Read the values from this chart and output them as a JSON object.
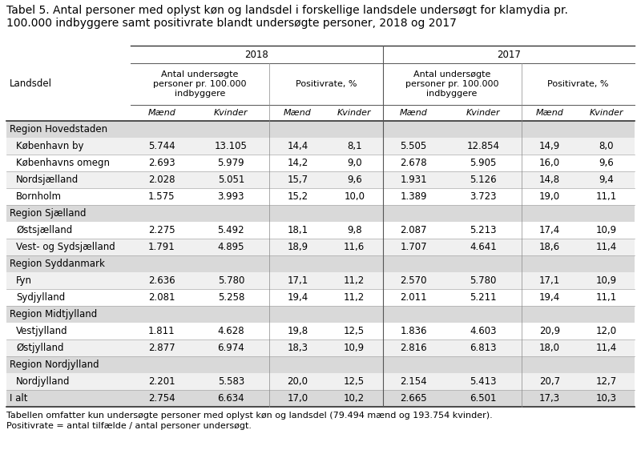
{
  "title": "Tabel 5. Antal personer med oplyst køn og landsdel i forskellige landsdele undersøgt for klamydia pr.\n100.000 indbyggere samt positivrate blandt undersøgte personer, 2018 og 2017",
  "footer1": "Tabellen omfatter kun undersøgte personer med oplyst køn og landsdel (79.494 mænd og 193.754 kvinder).",
  "footer2": "Positivrate = antal tilfælde / antal personer undersøgt.",
  "col_headers": [
    "Mænd",
    "Kvinder",
    "Mænd",
    "Kvinder",
    "Mænd",
    "Kvinder",
    "Mænd",
    "Kvinder"
  ],
  "row_header": "Landsdel",
  "rows": [
    {
      "label": "Region Hovedstaden",
      "is_region": true,
      "values": [
        "",
        "",
        "",
        "",
        "",
        "",
        "",
        ""
      ]
    },
    {
      "label": "København by",
      "is_region": false,
      "values": [
        "5.744",
        "13.105",
        "14,4",
        "8,1",
        "5.505",
        "12.854",
        "14,9",
        "8,0"
      ]
    },
    {
      "label": "Københavns omegn",
      "is_region": false,
      "values": [
        "2.693",
        "5.979",
        "14,2",
        "9,0",
        "2.678",
        "5.905",
        "16,0",
        "9,6"
      ]
    },
    {
      "label": "Nordsjælland",
      "is_region": false,
      "values": [
        "2.028",
        "5.051",
        "15,7",
        "9,6",
        "1.931",
        "5.126",
        "14,8",
        "9,4"
      ]
    },
    {
      "label": "Bornholm",
      "is_region": false,
      "values": [
        "1.575",
        "3.993",
        "15,2",
        "10,0",
        "1.389",
        "3.723",
        "19,0",
        "11,1"
      ]
    },
    {
      "label": "Region Sjælland",
      "is_region": true,
      "values": [
        "",
        "",
        "",
        "",
        "",
        "",
        "",
        ""
      ]
    },
    {
      "label": "Østsjælland",
      "is_region": false,
      "values": [
        "2.275",
        "5.492",
        "18,1",
        "9,8",
        "2.087",
        "5.213",
        "17,4",
        "10,9"
      ]
    },
    {
      "label": "Vest- og Sydsjælland",
      "is_region": false,
      "values": [
        "1.791",
        "4.895",
        "18,9",
        "11,6",
        "1.707",
        "4.641",
        "18,6",
        "11,4"
      ]
    },
    {
      "label": "Region Syddanmark",
      "is_region": true,
      "values": [
        "",
        "",
        "",
        "",
        "",
        "",
        "",
        ""
      ]
    },
    {
      "label": "Fyn",
      "is_region": false,
      "values": [
        "2.636",
        "5.780",
        "17,1",
        "11,2",
        "2.570",
        "5.780",
        "17,1",
        "10,9"
      ]
    },
    {
      "label": "Sydjylland",
      "is_region": false,
      "values": [
        "2.081",
        "5.258",
        "19,4",
        "11,2",
        "2.011",
        "5.211",
        "19,4",
        "11,1"
      ]
    },
    {
      "label": "Region Midtjylland",
      "is_region": true,
      "values": [
        "",
        "",
        "",
        "",
        "",
        "",
        "",
        ""
      ]
    },
    {
      "label": "Vestjylland",
      "is_region": false,
      "values": [
        "1.811",
        "4.628",
        "19,8",
        "12,5",
        "1.836",
        "4.603",
        "20,9",
        "12,0"
      ]
    },
    {
      "label": "Østjylland",
      "is_region": false,
      "values": [
        "2.877",
        "6.974",
        "18,3",
        "10,9",
        "2.816",
        "6.813",
        "18,0",
        "11,4"
      ]
    },
    {
      "label": "Region Nordjylland",
      "is_region": true,
      "values": [
        "",
        "",
        "",
        "",
        "",
        "",
        "",
        ""
      ]
    },
    {
      "label": "Nordjylland",
      "is_region": false,
      "values": [
        "2.201",
        "5.583",
        "20,0",
        "12,5",
        "2.154",
        "5.413",
        "20,7",
        "12,7"
      ]
    },
    {
      "label": "I alt",
      "is_region": false,
      "values": [
        "2.754",
        "6.634",
        "17,0",
        "10,2",
        "2.665",
        "6.501",
        "17,3",
        "10,3"
      ],
      "is_total": true
    }
  ],
  "bg_color": "#ffffff",
  "region_bg": "#d9d9d9",
  "alt_row_bg": "#f0f0f0",
  "total_bg": "#d9d9d9",
  "line_color": "#555555",
  "heavy_line": "#333333",
  "title_fontsize": 10.0,
  "header_fontsize": 8.5,
  "sub_fontsize": 8.0,
  "cell_fontsize": 8.5,
  "footer_fontsize": 8.0
}
